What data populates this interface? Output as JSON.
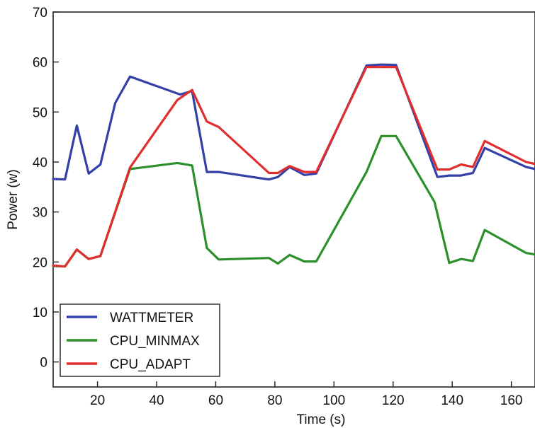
{
  "chart_data": {
    "type": "line",
    "xlabel": "Time (s)",
    "ylabel": "Power (w)",
    "xlim": [
      5,
      168
    ],
    "ylim": [
      -5,
      70
    ],
    "xticks": [
      20,
      40,
      60,
      80,
      100,
      120,
      140,
      160
    ],
    "yticks": [
      0,
      10,
      20,
      30,
      40,
      50,
      60,
      70
    ],
    "grid": false,
    "legend_position": "lower-left",
    "series": [
      {
        "name": "WATTMETER",
        "color": "#3340a8",
        "points": [
          [
            5,
            36.6
          ],
          [
            9,
            36.5
          ],
          [
            13,
            47.3
          ],
          [
            17,
            37.7
          ],
          [
            21,
            39.5
          ],
          [
            26,
            51.8
          ],
          [
            31,
            57.1
          ],
          [
            48,
            53.5
          ],
          [
            52,
            54.2
          ],
          [
            57,
            38.0
          ],
          [
            61,
            38.0
          ],
          [
            78,
            36.5
          ],
          [
            81,
            37.0
          ],
          [
            85,
            39.0
          ],
          [
            90,
            37.4
          ],
          [
            94,
            37.7
          ],
          [
            111,
            59.3
          ],
          [
            116,
            59.5
          ],
          [
            121,
            59.4
          ],
          [
            135,
            37.0
          ],
          [
            139,
            37.3
          ],
          [
            143,
            37.3
          ],
          [
            147,
            37.8
          ],
          [
            151,
            42.8
          ],
          [
            165,
            39.0
          ],
          [
            168,
            38.6
          ]
        ]
      },
      {
        "name": "CPU_MINMAX",
        "color": "#2b8f2b",
        "points": [
          [
            5,
            19.2
          ],
          [
            9,
            19.1
          ],
          [
            13,
            22.5
          ],
          [
            17,
            20.6
          ],
          [
            21,
            21.2
          ],
          [
            31,
            38.6
          ],
          [
            47,
            39.8
          ],
          [
            52,
            39.3
          ],
          [
            57,
            22.8
          ],
          [
            61,
            20.5
          ],
          [
            78,
            20.8
          ],
          [
            81,
            19.7
          ],
          [
            85,
            21.4
          ],
          [
            90,
            20.1
          ],
          [
            94,
            20.1
          ],
          [
            111,
            38.0
          ],
          [
            116,
            45.2
          ],
          [
            121,
            45.2
          ],
          [
            134,
            32.0
          ],
          [
            139,
            19.8
          ],
          [
            143,
            20.6
          ],
          [
            147,
            20.2
          ],
          [
            151,
            26.4
          ],
          [
            165,
            21.8
          ],
          [
            168,
            21.5
          ]
        ]
      },
      {
        "name": "CPU_ADAPT",
        "color": "#e02e2e",
        "points": [
          [
            5,
            19.3
          ],
          [
            9,
            19.1
          ],
          [
            13,
            22.5
          ],
          [
            17,
            20.6
          ],
          [
            21,
            21.2
          ],
          [
            31,
            38.9
          ],
          [
            47,
            52.4
          ],
          [
            52,
            54.4
          ],
          [
            57,
            48.1
          ],
          [
            61,
            47.0
          ],
          [
            78,
            37.8
          ],
          [
            81,
            37.8
          ],
          [
            85,
            39.2
          ],
          [
            90,
            38.0
          ],
          [
            94,
            38.0
          ],
          [
            111,
            59.0
          ],
          [
            116,
            59.0
          ],
          [
            121,
            59.0
          ],
          [
            135,
            38.5
          ],
          [
            139,
            38.5
          ],
          [
            143,
            39.5
          ],
          [
            147,
            39.0
          ],
          [
            151,
            44.2
          ],
          [
            165,
            40.0
          ],
          [
            168,
            39.6
          ]
        ]
      }
    ]
  }
}
